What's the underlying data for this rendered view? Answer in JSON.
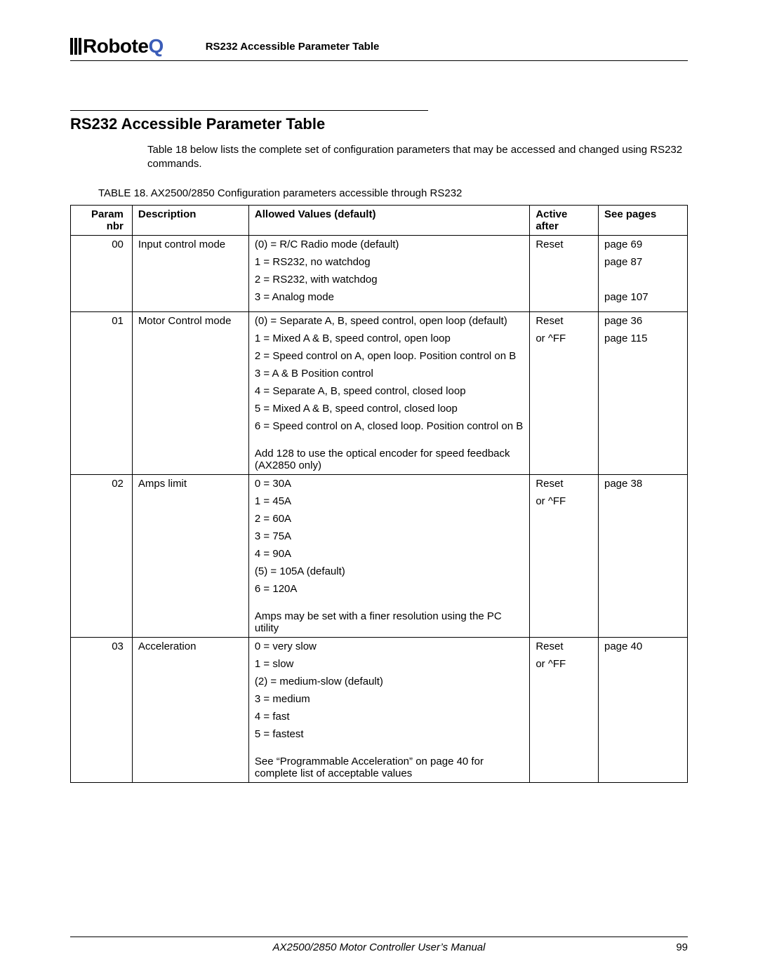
{
  "header": {
    "logo_text_main": "Robote",
    "logo_text_q": "Q",
    "title": "RS232 Accessible Parameter Table"
  },
  "section_title": "RS232 Accessible Parameter Table",
  "intro": "Table 18 below lists the complete set of configuration parameters that may be accessed and changed using RS232 commands.",
  "caption": "TABLE 18. AX2500/2850 Configuration parameters accessible through RS232",
  "columns": {
    "param": "Param nbr",
    "desc": "Description",
    "vals": "Allowed Values (default)",
    "active": "Active after",
    "pages": "See pages"
  },
  "rows": [
    {
      "param": "00",
      "desc": "Input control mode",
      "vals": [
        "(0) = R/C Radio mode (default)",
        "1 = RS232, no watchdog",
        "2 = RS232, with watchdog",
        "3 = Analog mode"
      ],
      "note": "",
      "active": [
        "Reset"
      ],
      "pages": [
        "page 69",
        "page 87",
        "",
        "page 107"
      ]
    },
    {
      "param": "01",
      "desc": "Motor Control mode",
      "vals": [
        "(0) = Separate A, B, speed control, open loop (default)",
        "1 = Mixed A & B, speed control, open loop",
        "2 = Speed control on A, open loop. Position control on B",
        "3 = A & B Position control",
        "4 = Separate A, B, speed control, closed loop",
        "5 = Mixed A & B, speed control, closed loop",
        "6 = Speed control on A, closed loop. Position control on B"
      ],
      "note": "Add 128 to use the optical encoder for speed feedback (AX2850 only)",
      "active": [
        "Reset",
        "or ^FF"
      ],
      "pages": [
        "page 36",
        "page 115"
      ]
    },
    {
      "param": "02",
      "desc": "Amps limit",
      "vals": [
        "0 = 30A",
        "1 = 45A",
        "2 = 60A",
        "3 = 75A",
        "4 = 90A",
        "(5) = 105A (default)",
        "6 = 120A"
      ],
      "note": "Amps may be set with a finer resolution using the PC utility",
      "active": [
        "Reset",
        "or ^FF"
      ],
      "pages": [
        "page 38"
      ]
    },
    {
      "param": "03",
      "desc": "Acceleration",
      "vals": [
        "0 = very slow",
        "1 = slow",
        "(2) = medium-slow (default)",
        "3 = medium",
        "4 = fast",
        "5 = fastest"
      ],
      "note": "See “Programmable Acceleration” on page 40 for complete list of acceptable values",
      "active": [
        "Reset",
        "or ^FF"
      ],
      "pages": [
        "page 40"
      ]
    }
  ],
  "footer": {
    "manual": "AX2500/2850 Motor Controller User’s Manual",
    "page": "99"
  }
}
